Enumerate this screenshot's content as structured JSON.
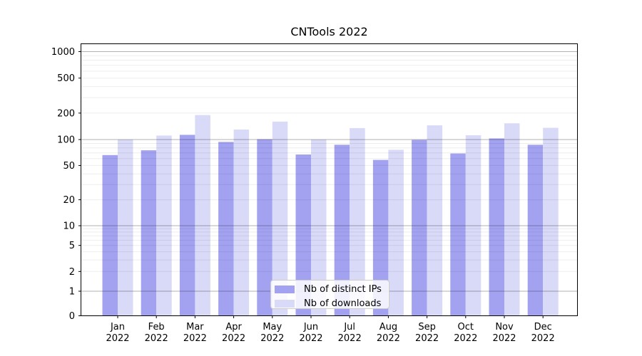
{
  "chart_data": {
    "type": "bar",
    "title": "CNTools 2022",
    "categories": [
      "Jan 2022",
      "Feb 2022",
      "Mar 2022",
      "Apr 2022",
      "May 2022",
      "Jun 2022",
      "Jul 2022",
      "Aug 2022",
      "Sep 2022",
      "Oct 2022",
      "Nov 2022",
      "Dec 2022"
    ],
    "series": [
      {
        "name": "Nb of distinct IPs",
        "color": "#a2a2f0",
        "values": [
          66,
          75,
          113,
          94,
          101,
          67,
          87,
          58,
          99,
          69,
          103,
          87
        ]
      },
      {
        "name": "Nb of downloads",
        "color": "#d9d9f8",
        "values": [
          100,
          111,
          190,
          130,
          160,
          100,
          135,
          76,
          145,
          112,
          153,
          136
        ]
      }
    ],
    "xlabel": "",
    "ylabel": "",
    "yscale": "symlog",
    "y_ticks": [
      0,
      1,
      2,
      5,
      10,
      20,
      50,
      100,
      200,
      500,
      1000
    ],
    "ylim": [
      0,
      1200
    ],
    "grid": "horizontal major and minor gridlines drawn over bars",
    "legend_position": "bottom center inside plot",
    "frame": "full box frame with black spines"
  }
}
